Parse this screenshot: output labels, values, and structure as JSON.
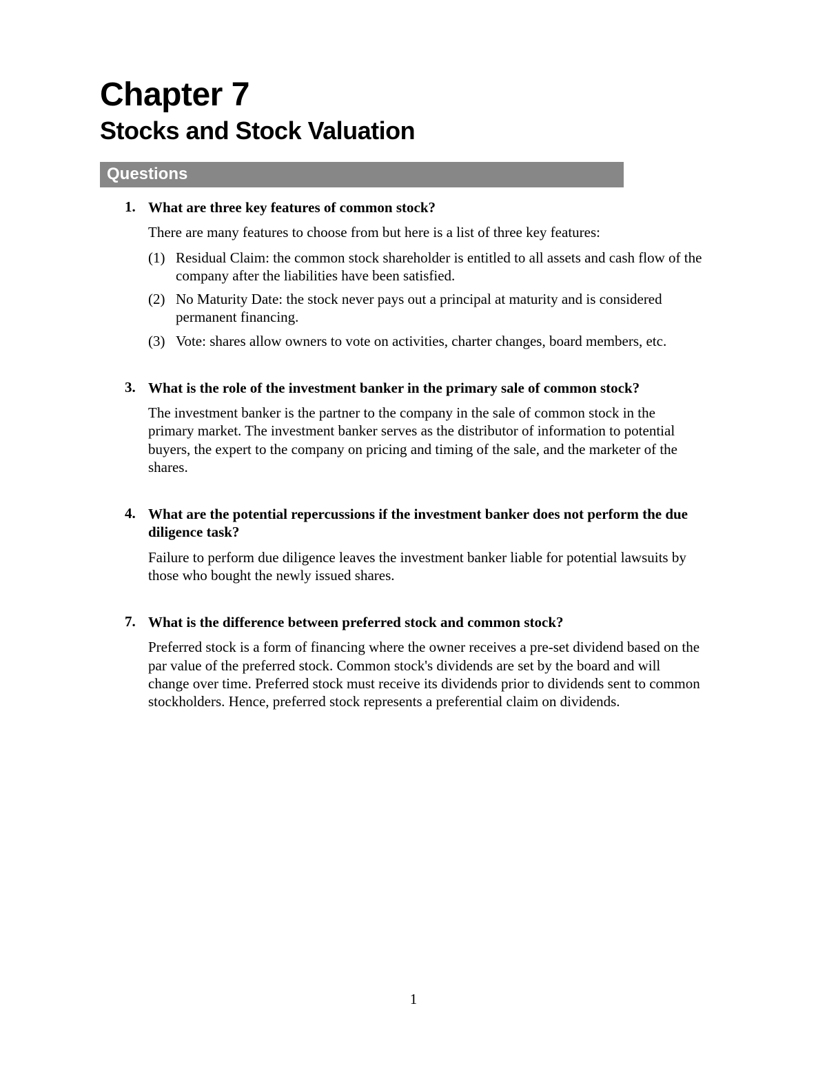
{
  "chapter": {
    "title": "Chapter 7",
    "subtitle": "Stocks and Stock Valuation"
  },
  "section_label": "Questions",
  "questions": [
    {
      "number": "1.",
      "text": "What are three key features of common stock?",
      "intro": "There are many features to choose from but here is a list of three key features:",
      "sub_items": [
        {
          "num": "(1)",
          "text": "Residual Claim: the common stock shareholder is entitled to all assets and cash flow of the company after the liabilities have been satisfied."
        },
        {
          "num": "(2)",
          "text": "No Maturity Date: the stock never pays out a principal at maturity and is considered permanent financing."
        },
        {
          "num": "(3)",
          "text": "Vote: shares allow owners to vote on activities, charter changes, board members, etc."
        }
      ]
    },
    {
      "number": "3.",
      "text": "What is the role of the investment banker in the primary sale of common stock?",
      "answer": "The investment banker is the partner to the company in the sale of common stock in the primary market. The investment banker serves as the distributor of information to potential buyers, the expert to the company on pricing and timing of the sale, and the marketer of the shares."
    },
    {
      "number": "4.",
      "text": "What are the potential repercussions if the investment banker does not perform the due diligence task?",
      "answer": "Failure to perform due diligence leaves the investment banker liable for potential lawsuits by those who bought the newly issued shares."
    },
    {
      "number": "7.",
      "text": "What is the difference between preferred stock and common stock?",
      "answer": "Preferred stock is a form of financing where the owner receives a pre-set dividend based on the par value of the preferred stock. Common stock's dividends are set by the board and will change over time. Preferred stock must receive its dividends prior to dividends sent to common stockholders. Hence, preferred stock represents a preferential claim on dividends."
    }
  ],
  "page_number": "1",
  "styles": {
    "background_color": "#ffffff",
    "text_color": "#000000",
    "bar_bg": "#878787",
    "bar_text": "#ffffff",
    "title_fontsize": 48,
    "subtitle_fontsize": 36,
    "section_fontsize": 24,
    "body_fontsize": 21
  }
}
